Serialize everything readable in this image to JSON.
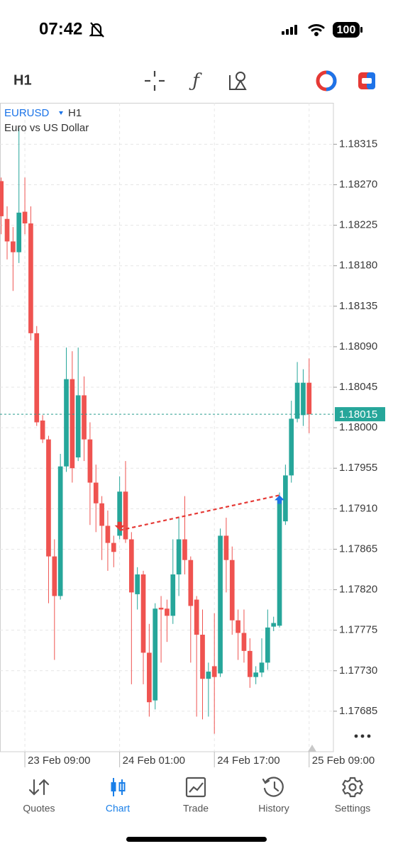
{
  "status_bar": {
    "time": "07:42",
    "battery": "100"
  },
  "toolbar": {
    "timeframe": "H1"
  },
  "chart_data": {
    "type": "candlestick",
    "symbol": "EURUSD",
    "timeframe": "H1",
    "description": "Euro vs US Dollar",
    "x": [
      0,
      1,
      2,
      3,
      4,
      5,
      6,
      7,
      8,
      9,
      10,
      11,
      12,
      13,
      14,
      15,
      16,
      17,
      18,
      19,
      20,
      21,
      22,
      23,
      24,
      25,
      26,
      27,
      28,
      29,
      30,
      31,
      32,
      33,
      34,
      35,
      36,
      37,
      38,
      39,
      40,
      41,
      42,
      43,
      44,
      45,
      46,
      47,
      48,
      49,
      50,
      51,
      52
    ],
    "open": [
      1.18274,
      1.18232,
      1.18207,
      1.18195,
      1.1824,
      1.18227,
      1.18105,
      1.18008,
      1.17987,
      1.17857,
      1.17813,
      1.17957,
      1.18054,
      1.17967,
      1.18036,
      1.17987,
      1.17939,
      1.17916,
      1.17891,
      1.17872,
      1.1788,
      1.17929,
      1.17876,
      1.17815,
      1.17837,
      1.1775,
      1.17697,
      1.178,
      1.17799,
      1.17791,
      1.17837,
      1.17876,
      1.17853,
      1.17809,
      1.1777,
      1.17721,
      1.17735,
      1.17727,
      1.1788,
      1.17853,
      1.17786,
      1.17772,
      1.17752,
      1.17723,
      1.17728,
      1.17739,
      1.17779,
      1.1778,
      1.17896,
      1.17947,
      1.1801,
      1.18014,
      1.1805
    ],
    "high": [
      1.18278,
      1.18246,
      1.18223,
      1.18333,
      1.18278,
      1.18246,
      1.18113,
      1.18014,
      1.17991,
      1.17876,
      1.17971,
      1.18089,
      1.18085,
      1.18089,
      1.18057,
      1.18006,
      1.17959,
      1.17924,
      1.17908,
      1.1788,
      1.17946,
      1.17963,
      1.17884,
      1.17845,
      1.17841,
      1.17782,
      1.17805,
      1.17813,
      1.17809,
      1.17876,
      1.179,
      1.17924,
      1.17857,
      1.17813,
      1.17798,
      1.17739,
      1.17794,
      1.17888,
      1.179,
      1.17868,
      1.17798,
      1.17798,
      1.17766,
      1.17735,
      1.17766,
      1.17798,
      1.1779,
      1.17928,
      1.17959,
      1.1803,
      1.18073,
      1.18065,
      1.18077
    ],
    "low": [
      1.18215,
      1.18187,
      1.18152,
      1.18183,
      1.18215,
      1.18097,
      1.18002,
      1.17983,
      1.17805,
      1.17742,
      1.17809,
      1.17951,
      1.17939,
      1.17963,
      1.17963,
      1.17892,
      1.17884,
      1.17853,
      1.17841,
      1.17845,
      1.17876,
      1.17872,
      1.17715,
      1.17798,
      1.17715,
      1.17679,
      1.17687,
      1.17739,
      1.17762,
      1.17782,
      1.17813,
      1.17837,
      1.17739,
      1.17679,
      1.17676,
      1.17679,
      1.1766,
      1.17723,
      1.17817,
      1.1777,
      1.17742,
      1.17739,
      1.17711,
      1.17715,
      1.17723,
      1.17731,
      1.17774,
      1.17778,
      1.17892,
      1.17939,
      1.18006,
      1.18002,
      1.17994
    ],
    "close": [
      1.18235,
      1.18207,
      1.18195,
      1.18239,
      1.18227,
      1.18105,
      1.18006,
      1.17987,
      1.17857,
      1.17813,
      1.17957,
      1.18054,
      1.17955,
      1.18036,
      1.17987,
      1.17939,
      1.17916,
      1.17891,
      1.17872,
      1.17862,
      1.17929,
      1.17876,
      1.17817,
      1.17837,
      1.1775,
      1.17695,
      1.17799,
      1.17798,
      1.17791,
      1.17837,
      1.17876,
      1.17853,
      1.17802,
      1.1777,
      1.17721,
      1.17729,
      1.17723,
      1.1788,
      1.17853,
      1.17786,
      1.17772,
      1.17752,
      1.17723,
      1.17728,
      1.17739,
      1.17778,
      1.17783,
      1.1792,
      1.17947,
      1.1801,
      1.1805,
      1.1805,
      1.18015
    ],
    "up_color": "#26a69a",
    "down_color": "#ef5350",
    "xlim": [
      -0.2,
      56.1
    ],
    "ylim": [
      1.1764,
      1.18361
    ],
    "yticks": [
      1.18315,
      {
        "value": 1.1827,
        "label": "1.18270"
      },
      1.18225,
      {
        "value": 1.1818,
        "label": "1.18180"
      },
      1.18135,
      {
        "value": 1.1809,
        "label": "1.18090"
      },
      1.18045,
      {
        "value": 1.18,
        "label": "1.18000"
      },
      1.17955,
      {
        "value": 1.1791,
        "label": "1.17910"
      },
      1.17865,
      {
        "value": 1.1782,
        "label": "1.17820"
      },
      1.17775,
      {
        "value": 1.1773,
        "label": "1.17730"
      },
      1.17685
    ],
    "xticks": [
      {
        "value": 4,
        "label": "23 Feb 09:00"
      },
      {
        "value": 20,
        "label": "24 Feb 01:00"
      },
      {
        "value": 36,
        "label": "24 Feb 17:00"
      },
      {
        "value": 52,
        "label": "25 Feb 09:00"
      }
    ],
    "grid": true,
    "current_price": 1.18015,
    "trade_line": {
      "x": [
        20,
        47
      ],
      "values": [
        1.17886,
        1.17925
      ],
      "color": "#e53935"
    }
  },
  "nav": {
    "items": [
      "Quotes",
      "Chart",
      "Trade",
      "History",
      "Settings"
    ],
    "active": 1
  }
}
